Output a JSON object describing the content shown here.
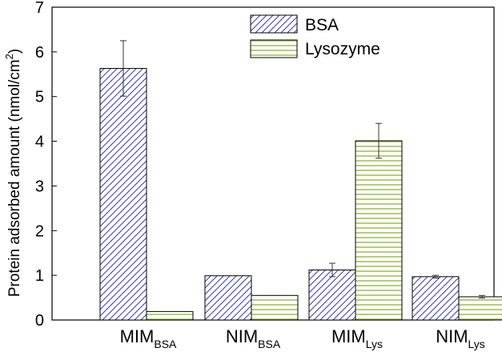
{
  "chart_data": {
    "type": "bar",
    "title": "",
    "xlabel": "",
    "ylabel": "Protein adsorbed amount (nmol/cm",
    "ylabel_superscript": "2",
    "ylabel_suffix": ")",
    "ylim": [
      0,
      7
    ],
    "yticks": [
      "0",
      "1",
      "2",
      "3",
      "4",
      "5",
      "6",
      "7"
    ],
    "categories": [
      {
        "main": "MIM",
        "sub": "BSA"
      },
      {
        "main": "NIM",
        "sub": "BSA"
      },
      {
        "main": "MIM",
        "sub": "Lys"
      },
      {
        "main": "NIM",
        "sub": "Lys"
      }
    ],
    "series": [
      {
        "name": "BSA",
        "values": [
          5.63,
          0.99,
          1.12,
          0.97
        ],
        "errors": [
          0.62,
          0.0,
          0.15,
          0.03
        ],
        "pattern": "diagonal",
        "color": "#3a3ab0"
      },
      {
        "name": "Lysozyme",
        "values": [
          0.19,
          0.55,
          4.01,
          0.52
        ],
        "errors": [
          0.0,
          0.0,
          0.39,
          0.03
        ],
        "pattern": "horizontal",
        "color": "#8cb832"
      }
    ],
    "legend_position": "top-right",
    "grid": false
  }
}
